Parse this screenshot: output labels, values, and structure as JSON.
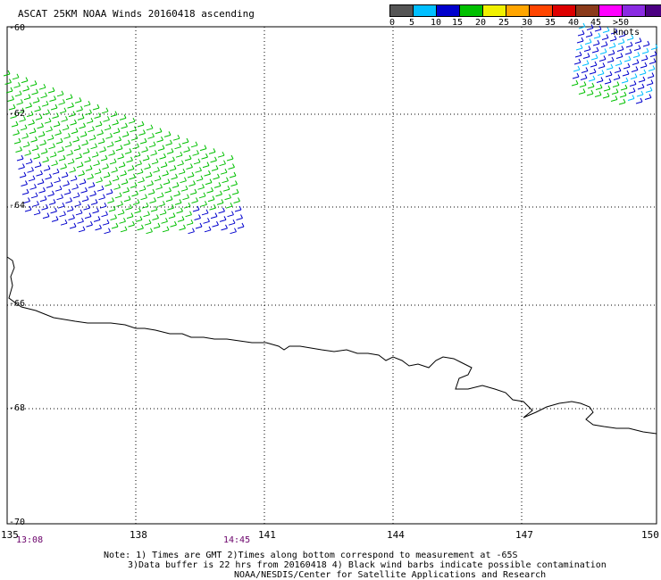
{
  "title": "ASCAT 25KM NOAA Winds 20160418 ascending",
  "colorbar": {
    "swatches": [
      {
        "min": 0,
        "max": 5,
        "color": "#555555"
      },
      {
        "min": 5,
        "max": 10,
        "color": "#00bfff"
      },
      {
        "min": 10,
        "max": 15,
        "color": "#0000cd"
      },
      {
        "min": 15,
        "max": 20,
        "color": "#00c000"
      },
      {
        "min": 20,
        "max": 25,
        "color": "#f0f000"
      },
      {
        "min": 25,
        "max": 30,
        "color": "#ffa500"
      },
      {
        "min": 30,
        "max": 35,
        "color": "#ff4500"
      },
      {
        "min": 35,
        "max": 40,
        "color": "#dd0000"
      },
      {
        "min": 40,
        "max": 45,
        "color": "#8b3a1a"
      },
      {
        "min": 45,
        "max": 50,
        "color": "#ff00ff"
      },
      {
        "min": 50,
        "max": 55,
        "color": "#8a2be2"
      },
      {
        "min": 55,
        "max": 60,
        "color": "#4b0082"
      }
    ],
    "ticks": [
      "0",
      "5",
      "10",
      "15",
      "20",
      "25",
      "30",
      "35",
      "40",
      "45",
      ">50 knots"
    ]
  },
  "latitudes": [
    "-60",
    "-62",
    "-64",
    "-66",
    "-68",
    "-70"
  ],
  "longitudes": [
    "135",
    "138",
    "141",
    "144",
    "147",
    "150"
  ],
  "times": [
    "13:08",
    "14:45"
  ],
  "notes": [
    "Note: 1) Times are GMT 2)Times along bottom correspond to measurement at -65S",
    "3)Data buffer is 22 hrs from 20160418 4) Black wind barbs indicate possible contamination",
    "NOAA/NESDIS/Center for Satellite Applications and Research"
  ],
  "wind_colors": {
    "calm": "#00bfff",
    "moderate": "#0000cd",
    "strong": "#00c000"
  }
}
